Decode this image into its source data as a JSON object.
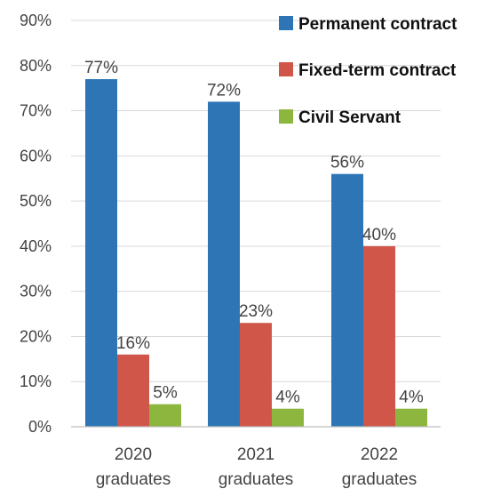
{
  "chart_data": {
    "type": "bar",
    "categories": [
      "2020 graduates",
      "2021 graduates",
      "2022 graduates"
    ],
    "category_lines": [
      [
        "2020",
        "graduates"
      ],
      [
        "2021",
        "graduates"
      ],
      [
        "2022",
        "graduates"
      ]
    ],
    "series": [
      {
        "name": "Permanent contract",
        "values": [
          77,
          72,
          56
        ],
        "labels": [
          "77%",
          "72%",
          "56%"
        ],
        "color": "#2e75b6"
      },
      {
        "name": "Fixed-term contract",
        "values": [
          16,
          23,
          40
        ],
        "labels": [
          "16%",
          "23%",
          "40%"
        ],
        "color": "#d0564a"
      },
      {
        "name": "Civil Servant",
        "values": [
          5,
          4,
          4
        ],
        "labels": [
          "5%",
          "4%",
          "4%"
        ],
        "color": "#8db63f"
      }
    ],
    "ylim": [
      0,
      90
    ],
    "yticks": [
      0,
      10,
      20,
      30,
      40,
      50,
      60,
      70,
      80,
      90
    ],
    "ytick_labels": [
      "0%",
      "10%",
      "20%",
      "30%",
      "40%",
      "50%",
      "60%",
      "70%",
      "80%",
      "90%"
    ],
    "grid": true,
    "legend_position": "top-right",
    "title": "",
    "xlabel": "",
    "ylabel": ""
  }
}
